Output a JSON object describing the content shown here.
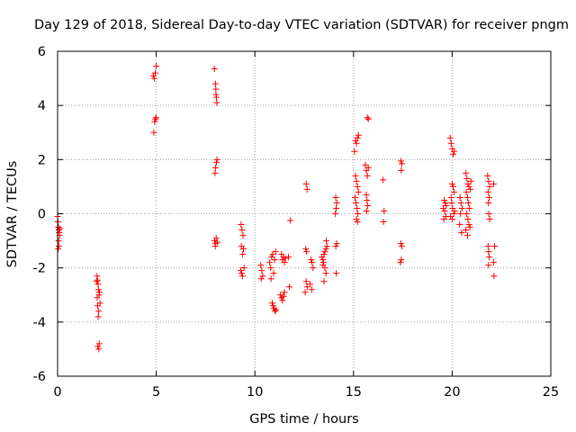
{
  "colors": {
    "series": "#ff0000",
    "grid": "#a0a0a0",
    "axis": "#000000",
    "background": "#ffffff"
  },
  "chart_data": {
    "type": "scatter",
    "title": "Day 129 of 2018, Sidereal Day-to-day VTEC variation (SDTVAR) for receiver pngm",
    "xlabel": "GPS time / hours",
    "ylabel": "SDTVAR / TECUs",
    "xlim": [
      0,
      25
    ],
    "ylim": [
      -6,
      6
    ],
    "xticks": [
      0,
      5,
      10,
      15,
      20,
      25
    ],
    "yticks": [
      -6,
      -4,
      -2,
      0,
      2,
      4,
      6
    ],
    "grid": true,
    "marker": "+",
    "series": [
      {
        "name": "SDTVAR",
        "points": [
          [
            0.0,
            -0.1
          ],
          [
            0.02,
            -0.3
          ],
          [
            0.04,
            -0.5
          ],
          [
            0.06,
            -0.6
          ],
          [
            0.08,
            -0.7
          ],
          [
            0.05,
            -1.0
          ],
          [
            0.07,
            -1.2
          ],
          [
            0.03,
            -1.3
          ],
          [
            0.1,
            -0.8
          ],
          [
            0.12,
            -0.55
          ],
          [
            2.0,
            -2.3
          ],
          [
            2.02,
            -2.45
          ],
          [
            2.05,
            -2.6
          ],
          [
            2.07,
            -2.8
          ],
          [
            2.1,
            -3.0
          ],
          [
            2.12,
            -2.9
          ],
          [
            2.15,
            -3.3
          ],
          [
            2.03,
            -3.4
          ],
          [
            2.08,
            -3.6
          ],
          [
            2.06,
            -3.8
          ],
          [
            2.11,
            -4.8
          ],
          [
            2.04,
            -4.9
          ],
          [
            2.09,
            -5.0
          ],
          [
            1.98,
            -2.5
          ],
          [
            2.01,
            -3.1
          ],
          [
            4.85,
            5.1
          ],
          [
            4.9,
            5.0
          ],
          [
            4.95,
            5.2
          ],
          [
            5.0,
            5.45
          ],
          [
            4.92,
            3.4
          ],
          [
            4.96,
            3.5
          ],
          [
            5.0,
            3.55
          ],
          [
            4.88,
            3.0
          ],
          [
            7.95,
            5.35
          ],
          [
            8.0,
            4.8
          ],
          [
            8.02,
            4.6
          ],
          [
            8.05,
            4.3
          ],
          [
            8.07,
            4.1
          ],
          [
            8.03,
            4.4
          ],
          [
            7.98,
            1.5
          ],
          [
            8.01,
            1.7
          ],
          [
            8.05,
            1.9
          ],
          [
            8.08,
            2.0
          ],
          [
            7.96,
            -1.0
          ],
          [
            8.0,
            -1.1
          ],
          [
            8.04,
            -0.9
          ],
          [
            8.1,
            -1.05
          ],
          [
            7.99,
            -1.2
          ],
          [
            9.3,
            -0.4
          ],
          [
            9.35,
            -0.6
          ],
          [
            9.4,
            -0.8
          ],
          [
            9.32,
            -1.2
          ],
          [
            9.38,
            -1.5
          ],
          [
            9.42,
            -1.3
          ],
          [
            9.28,
            -2.1
          ],
          [
            9.33,
            -2.2
          ],
          [
            9.37,
            -2.3
          ],
          [
            9.45,
            -2.0
          ],
          [
            10.3,
            -1.9
          ],
          [
            10.35,
            -2.1
          ],
          [
            10.4,
            -2.3
          ],
          [
            10.32,
            -2.4
          ],
          [
            10.75,
            -1.8
          ],
          [
            10.8,
            -2.0
          ],
          [
            10.85,
            -1.6
          ],
          [
            10.9,
            -1.5
          ],
          [
            10.95,
            -2.2
          ],
          [
            11.0,
            -1.7
          ],
          [
            11.05,
            -1.4
          ],
          [
            10.82,
            -2.4
          ],
          [
            10.88,
            -3.3
          ],
          [
            10.92,
            -3.4
          ],
          [
            10.97,
            -3.5
          ],
          [
            11.02,
            -3.6
          ],
          [
            11.07,
            -3.55
          ],
          [
            11.3,
            -3.0
          ],
          [
            11.35,
            -3.1
          ],
          [
            11.4,
            -3.2
          ],
          [
            11.45,
            -3.05
          ],
          [
            11.5,
            -2.9
          ],
          [
            11.35,
            -1.5
          ],
          [
            11.4,
            -1.7
          ],
          [
            11.45,
            -1.6
          ],
          [
            11.5,
            -1.8
          ],
          [
            11.55,
            -1.65
          ],
          [
            11.7,
            -1.6
          ],
          [
            11.8,
            -0.25
          ],
          [
            11.75,
            -2.7
          ],
          [
            12.6,
            1.1
          ],
          [
            12.65,
            0.9
          ],
          [
            12.58,
            -1.3
          ],
          [
            12.62,
            -1.4
          ],
          [
            12.6,
            -2.5
          ],
          [
            12.65,
            -2.7
          ],
          [
            12.55,
            -2.9
          ],
          [
            12.85,
            -1.7
          ],
          [
            12.9,
            -1.8
          ],
          [
            12.95,
            -2.0
          ],
          [
            12.8,
            -2.6
          ],
          [
            12.88,
            -2.8
          ],
          [
            13.4,
            -1.6
          ],
          [
            13.45,
            -1.7
          ],
          [
            13.5,
            -1.5
          ],
          [
            13.55,
            -1.4
          ],
          [
            13.6,
            -1.3
          ],
          [
            13.65,
            -1.2
          ],
          [
            13.45,
            -1.9
          ],
          [
            13.55,
            -2.0
          ],
          [
            13.6,
            -2.2
          ],
          [
            13.5,
            -2.5
          ],
          [
            13.62,
            -1.0
          ],
          [
            13.48,
            -1.8
          ],
          [
            14.1,
            0.6
          ],
          [
            14.15,
            0.4
          ],
          [
            14.12,
            0.2
          ],
          [
            14.08,
            0.0
          ],
          [
            14.15,
            -1.1
          ],
          [
            14.1,
            -1.2
          ],
          [
            14.12,
            -2.2
          ],
          [
            15.1,
            2.7
          ],
          [
            15.15,
            2.6
          ],
          [
            15.2,
            2.8
          ],
          [
            15.25,
            2.9
          ],
          [
            15.05,
            2.3
          ],
          [
            15.1,
            1.4
          ],
          [
            15.15,
            1.2
          ],
          [
            15.2,
            1.0
          ],
          [
            15.25,
            0.8
          ],
          [
            15.08,
            0.6
          ],
          [
            15.12,
            0.4
          ],
          [
            15.18,
            0.2
          ],
          [
            15.22,
            0.0
          ],
          [
            15.15,
            -0.2
          ],
          [
            15.2,
            -0.3
          ],
          [
            15.7,
            3.55
          ],
          [
            15.75,
            3.5
          ],
          [
            15.6,
            1.8
          ],
          [
            15.65,
            1.6
          ],
          [
            15.7,
            1.4
          ],
          [
            15.75,
            1.7
          ],
          [
            15.65,
            0.7
          ],
          [
            15.68,
            0.5
          ],
          [
            15.72,
            0.3
          ],
          [
            15.66,
            0.1
          ],
          [
            16.5,
            1.25
          ],
          [
            16.55,
            0.1
          ],
          [
            16.52,
            -0.3
          ],
          [
            17.4,
            1.95
          ],
          [
            17.45,
            1.85
          ],
          [
            17.42,
            1.6
          ],
          [
            17.4,
            -1.1
          ],
          [
            17.45,
            -1.2
          ],
          [
            17.42,
            -1.7
          ],
          [
            17.38,
            -1.8
          ],
          [
            19.6,
            0.5
          ],
          [
            19.65,
            0.4
          ],
          [
            19.7,
            0.3
          ],
          [
            19.55,
            0.2
          ],
          [
            19.62,
            0.1
          ],
          [
            19.68,
            -0.1
          ],
          [
            19.58,
            -0.2
          ],
          [
            19.9,
            2.8
          ],
          [
            19.95,
            2.6
          ],
          [
            20.0,
            2.4
          ],
          [
            20.05,
            2.2
          ],
          [
            20.1,
            2.3
          ],
          [
            20.0,
            1.1
          ],
          [
            20.05,
            1.0
          ],
          [
            20.1,
            0.8
          ],
          [
            19.95,
            0.6
          ],
          [
            19.98,
            0.4
          ],
          [
            20.02,
            0.2
          ],
          [
            20.08,
            0.0
          ],
          [
            19.92,
            -0.1
          ],
          [
            20.0,
            -0.2
          ],
          [
            20.12,
            0.1
          ],
          [
            20.4,
            0.6
          ],
          [
            20.45,
            0.4
          ],
          [
            20.5,
            0.2
          ],
          [
            20.42,
            0.0
          ],
          [
            20.38,
            -0.4
          ],
          [
            20.48,
            -0.7
          ],
          [
            20.7,
            1.5
          ],
          [
            20.75,
            1.3
          ],
          [
            20.8,
            1.1
          ],
          [
            20.85,
            1.0
          ],
          [
            20.72,
            0.8
          ],
          [
            20.78,
            0.6
          ],
          [
            20.82,
            0.4
          ],
          [
            20.88,
            0.2
          ],
          [
            20.74,
            0.0
          ],
          [
            20.8,
            -0.2
          ],
          [
            20.85,
            -0.4
          ],
          [
            20.7,
            -0.6
          ],
          [
            20.78,
            -0.8
          ],
          [
            20.9,
            -0.5
          ],
          [
            20.92,
            0.9
          ],
          [
            20.95,
            1.2
          ],
          [
            21.8,
            1.4
          ],
          [
            21.85,
            1.2
          ],
          [
            21.9,
            1.0
          ],
          [
            21.82,
            0.8
          ],
          [
            21.88,
            0.6
          ],
          [
            21.84,
            0.4
          ],
          [
            21.86,
            0.0
          ],
          [
            21.9,
            -0.2
          ],
          [
            21.82,
            -1.2
          ],
          [
            21.85,
            -1.4
          ],
          [
            21.88,
            -1.6
          ],
          [
            21.84,
            -1.9
          ],
          [
            22.1,
            1.1
          ],
          [
            22.15,
            -1.2
          ],
          [
            22.1,
            -1.8
          ],
          [
            22.12,
            -2.3
          ]
        ]
      }
    ]
  }
}
